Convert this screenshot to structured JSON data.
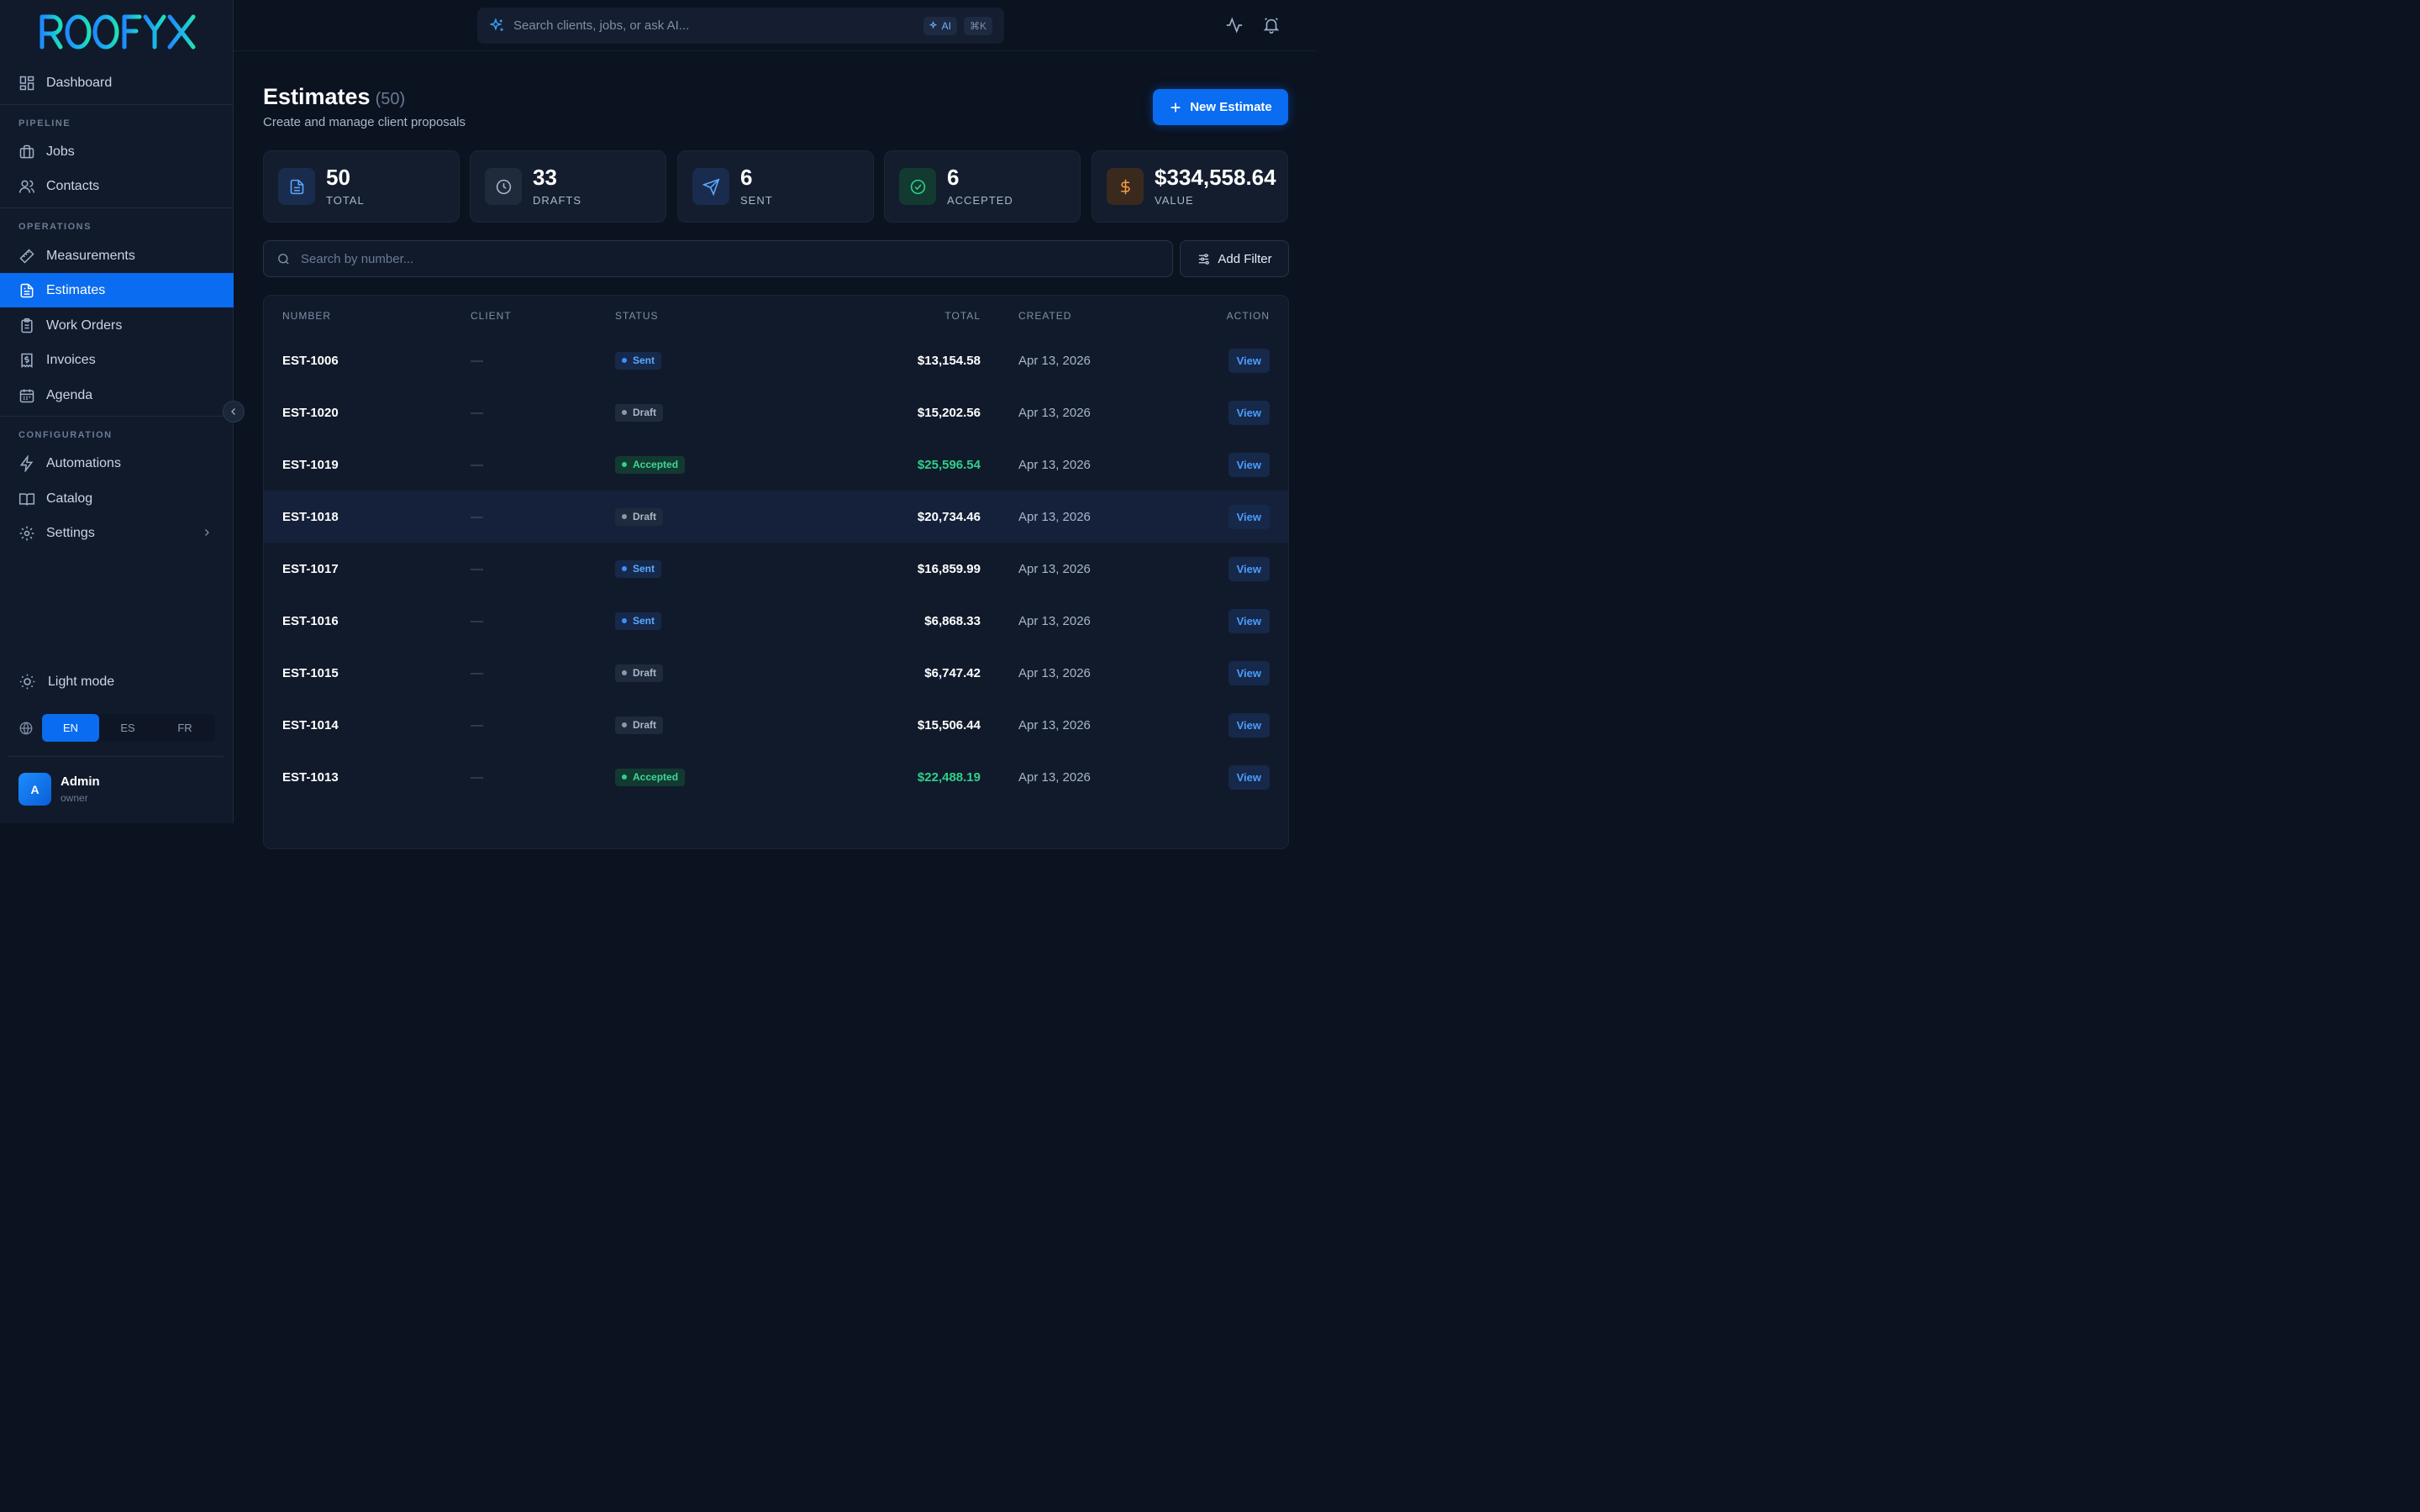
{
  "sidebar": {
    "logo": "ROOFYX",
    "dashboard": "Dashboard",
    "sections": {
      "pipeline": "PIPELINE",
      "operations": "OPERATIONS",
      "configuration": "CONFIGURATION"
    },
    "items": {
      "jobs": "Jobs",
      "contacts": "Contacts",
      "measurements": "Measurements",
      "estimates": "Estimates",
      "work_orders": "Work Orders",
      "invoices": "Invoices",
      "agenda": "Agenda",
      "automations": "Automations",
      "catalog": "Catalog",
      "settings": "Settings"
    },
    "light_mode": "Light mode",
    "languages": [
      "EN",
      "ES",
      "FR"
    ],
    "active_language": "EN",
    "user": {
      "initial": "A",
      "name": "Admin",
      "role": "owner"
    }
  },
  "topbar": {
    "search_placeholder": "Search clients, jobs, or ask AI...",
    "ai_badge": "AI",
    "shortcut": "⌘K"
  },
  "page": {
    "title": "Estimates",
    "count": "(50)",
    "subtitle": "Create and manage client proposals",
    "new_button": "New Estimate"
  },
  "stats": [
    {
      "value": "50",
      "label": "TOTAL",
      "icon": "document-icon",
      "color": "#5aa9ff"
    },
    {
      "value": "33",
      "label": "DRAFTS",
      "icon": "clock-icon",
      "color": "#a9b6c9"
    },
    {
      "value": "6",
      "label": "SENT",
      "icon": "send-icon",
      "color": "#5aa9ff"
    },
    {
      "value": "6",
      "label": "ACCEPTED",
      "icon": "check-circle-icon",
      "color": "#2fd08a"
    },
    {
      "value": "$334,558.64",
      "label": "VALUE",
      "icon": "dollar-icon",
      "color": "#f59e42"
    }
  ],
  "filter": {
    "search_placeholder": "Search by number...",
    "add_filter": "Add Filter"
  },
  "table": {
    "headers": {
      "number": "NUMBER",
      "client": "CLIENT",
      "status": "STATUS",
      "total": "TOTAL",
      "created": "CREATED",
      "action": "ACTION"
    },
    "rows": [
      {
        "number": "EST-1006",
        "client": "—",
        "status": "Sent",
        "total": "$13,154.58",
        "created": "Apr 13, 2026",
        "action": "View"
      },
      {
        "number": "EST-1020",
        "client": "—",
        "status": "Draft",
        "total": "$15,202.56",
        "created": "Apr 13, 2026",
        "action": "View"
      },
      {
        "number": "EST-1019",
        "client": "—",
        "status": "Accepted",
        "total": "$25,596.54",
        "created": "Apr 13, 2026",
        "action": "View"
      },
      {
        "number": "EST-1018",
        "client": "—",
        "status": "Draft",
        "total": "$20,734.46",
        "created": "Apr 13, 2026",
        "action": "View"
      },
      {
        "number": "EST-1017",
        "client": "—",
        "status": "Sent",
        "total": "$16,859.99",
        "created": "Apr 13, 2026",
        "action": "View"
      },
      {
        "number": "EST-1016",
        "client": "—",
        "status": "Sent",
        "total": "$6,868.33",
        "created": "Apr 13, 2026",
        "action": "View"
      },
      {
        "number": "EST-1015",
        "client": "—",
        "status": "Draft",
        "total": "$6,747.42",
        "created": "Apr 13, 2026",
        "action": "View"
      },
      {
        "number": "EST-1014",
        "client": "—",
        "status": "Draft",
        "total": "$15,506.44",
        "created": "Apr 13, 2026",
        "action": "View"
      },
      {
        "number": "EST-1013",
        "client": "—",
        "status": "Accepted",
        "total": "$22,488.19",
        "created": "Apr 13, 2026",
        "action": "View"
      }
    ]
  }
}
